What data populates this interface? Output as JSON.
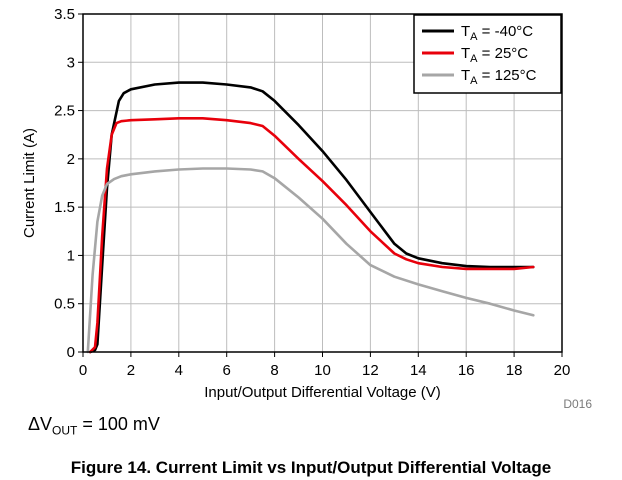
{
  "chart_data": {
    "type": "line",
    "xlabel": "Input/Output Differential Voltage (V)",
    "ylabel": "Current Limit (A)",
    "xlim": [
      0,
      20
    ],
    "ylim": [
      0,
      3.5
    ],
    "xticks": [
      "0",
      "2",
      "4",
      "6",
      "8",
      "10",
      "12",
      "14",
      "16",
      "18",
      "20"
    ],
    "yticks": [
      "0",
      "0.5",
      "1",
      "1.5",
      "2",
      "2.5",
      "3",
      "3.5"
    ],
    "grid": true,
    "legend_position": "top-right",
    "series": [
      {
        "name_main": "T",
        "name_sub": "A",
        "name_rest": " = -40°C",
        "color": "#000000",
        "x": [
          0.3,
          0.5,
          0.6,
          0.8,
          1.0,
          1.2,
          1.5,
          1.7,
          2.0,
          3.0,
          4.0,
          5.0,
          6.0,
          7.0,
          7.5,
          8.0,
          9.0,
          10.0,
          11.0,
          12.0,
          13.0,
          13.5,
          14.0,
          15.0,
          16.0,
          17.0,
          18.0,
          18.8
        ],
        "y": [
          0.0,
          0.02,
          0.08,
          0.9,
          1.7,
          2.25,
          2.6,
          2.68,
          2.72,
          2.77,
          2.79,
          2.79,
          2.77,
          2.74,
          2.7,
          2.6,
          2.35,
          2.08,
          1.78,
          1.45,
          1.12,
          1.02,
          0.97,
          0.92,
          0.89,
          0.88,
          0.88,
          0.88
        ]
      },
      {
        "name_main": "T",
        "name_sub": "A",
        "name_rest": " = 25°C",
        "color": "#e8000b",
        "x": [
          0.3,
          0.5,
          0.6,
          0.8,
          1.0,
          1.2,
          1.4,
          1.6,
          2.0,
          3.0,
          4.0,
          5.0,
          6.0,
          7.0,
          7.5,
          8.0,
          9.0,
          10.0,
          11.0,
          12.0,
          13.0,
          13.5,
          14.0,
          15.0,
          16.0,
          17.0,
          18.0,
          18.8
        ],
        "y": [
          0.0,
          0.05,
          0.3,
          1.2,
          1.9,
          2.25,
          2.37,
          2.39,
          2.4,
          2.41,
          2.42,
          2.42,
          2.4,
          2.37,
          2.34,
          2.24,
          2.0,
          1.77,
          1.52,
          1.25,
          1.02,
          0.96,
          0.92,
          0.88,
          0.86,
          0.86,
          0.86,
          0.88
        ]
      },
      {
        "name_main": "T",
        "name_sub": "A",
        "name_rest": " = 125°C",
        "color": "#a6a6a6",
        "x": [
          0.2,
          0.4,
          0.6,
          0.8,
          1.0,
          1.3,
          1.6,
          2.0,
          3.0,
          4.0,
          5.0,
          6.0,
          7.0,
          7.5,
          8.0,
          9.0,
          10.0,
          11.0,
          12.0,
          13.0,
          14.0,
          15.0,
          16.0,
          17.0,
          18.0,
          18.8
        ],
        "y": [
          0.0,
          0.8,
          1.35,
          1.62,
          1.74,
          1.79,
          1.82,
          1.84,
          1.87,
          1.89,
          1.9,
          1.9,
          1.89,
          1.87,
          1.8,
          1.6,
          1.38,
          1.12,
          0.9,
          0.78,
          0.7,
          0.63,
          0.56,
          0.5,
          0.43,
          0.38
        ]
      }
    ],
    "figure_id": "D016"
  },
  "note": {
    "prefix": "ΔV",
    "sub": "OUT",
    "rest": " = 100 mV"
  },
  "caption": "Figure 14. Current Limit vs Input/Output Differential Voltage"
}
